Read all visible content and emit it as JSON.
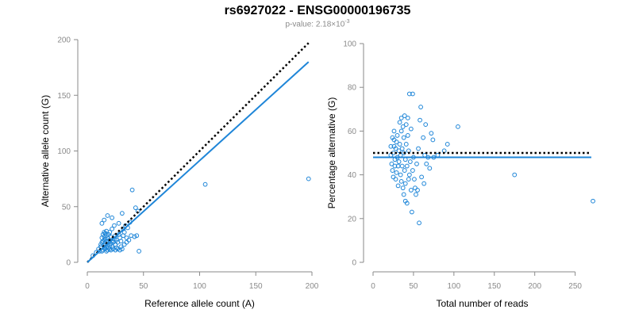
{
  "header": {
    "title": "rs6927022 - ENSG00000196735",
    "subtitle_prefix": "p-value: 2.18×10",
    "subtitle_exponent": "-3"
  },
  "colors": {
    "point": "#1f86d8",
    "fit_line": "#1f86d8",
    "reference_line": "#000000",
    "axis": "#8a8a8a",
    "tick_label": "#8a8a8a"
  },
  "chart_data": [
    {
      "type": "scatter",
      "xlabel": "Reference allele count (A)",
      "ylabel": "Alternative allele count (G)",
      "xlim": [
        0,
        200
      ],
      "ylim": [
        0,
        200
      ],
      "x_ticks": [
        0,
        50,
        100,
        150,
        200
      ],
      "y_ticks": [
        0,
        50,
        100,
        150,
        200
      ],
      "grid": false,
      "series": [
        {
          "points": [
            [
              5,
              6
            ],
            [
              8,
              9
            ],
            [
              10,
              12
            ],
            [
              11,
              10
            ],
            [
              12,
              14
            ],
            [
              12,
              16
            ],
            [
              13,
              10
            ],
            [
              13,
              18
            ],
            [
              13,
              22
            ],
            [
              13,
              35
            ],
            [
              14,
              11
            ],
            [
              14,
              19
            ],
            [
              14,
              25
            ],
            [
              15,
              13
            ],
            [
              15,
              15
            ],
            [
              15,
              20
            ],
            [
              15,
              23
            ],
            [
              15,
              27
            ],
            [
              15,
              38
            ],
            [
              16,
              12
            ],
            [
              16,
              17
            ],
            [
              16,
              21
            ],
            [
              16,
              26
            ],
            [
              17,
              10
            ],
            [
              17,
              14
            ],
            [
              17,
              19
            ],
            [
              17,
              24
            ],
            [
              17,
              28
            ],
            [
              18,
              11
            ],
            [
              18,
              16
            ],
            [
              18,
              22
            ],
            [
              18,
              42
            ],
            [
              19,
              13
            ],
            [
              19,
              18
            ],
            [
              19,
              25
            ],
            [
              20,
              12
            ],
            [
              20,
              15
            ],
            [
              20,
              20
            ],
            [
              20,
              27
            ],
            [
              21,
              11
            ],
            [
              21,
              17
            ],
            [
              21,
              23
            ],
            [
              22,
              14
            ],
            [
              22,
              19
            ],
            [
              22,
              30
            ],
            [
              22,
              40
            ],
            [
              23,
              12
            ],
            [
              23,
              18
            ],
            [
              24,
              21
            ],
            [
              24,
              33
            ],
            [
              25,
              11
            ],
            [
              25,
              16
            ],
            [
              25,
              24
            ],
            [
              26,
              13
            ],
            [
              26,
              20
            ],
            [
              27,
              12
            ],
            [
              27,
              18
            ],
            [
              28,
              25
            ],
            [
              28,
              35
            ],
            [
              29,
              11
            ],
            [
              29,
              22
            ],
            [
              30,
              14
            ],
            [
              30,
              19
            ],
            [
              31,
              12
            ],
            [
              31,
              44
            ],
            [
              32,
              24
            ],
            [
              32,
              30
            ],
            [
              33,
              16
            ],
            [
              33,
              27
            ],
            [
              34,
              33
            ],
            [
              35,
              18
            ],
            [
              35,
              22
            ],
            [
              36,
              31
            ],
            [
              37,
              20
            ],
            [
              38,
              36
            ],
            [
              39,
              24
            ],
            [
              40,
              65
            ],
            [
              42,
              23
            ],
            [
              43,
              49
            ],
            [
              44,
              24
            ],
            [
              45,
              46
            ],
            [
              46,
              10
            ],
            [
              105,
              70
            ],
            [
              197,
              75
            ]
          ]
        }
      ],
      "reference_line": {
        "style": "dotted",
        "from": [
          0,
          0
        ],
        "to": [
          197,
          197
        ]
      },
      "fit_line": {
        "style": "solid",
        "from": [
          0,
          0
        ],
        "to": [
          197,
          180
        ]
      }
    },
    {
      "type": "scatter",
      "xlabel": "Total number of reads",
      "ylabel": "Percentage alternative (G)",
      "xlim": [
        0,
        270
      ],
      "ylim": [
        0,
        100
      ],
      "x_ticks": [
        0,
        50,
        100,
        150,
        200,
        250
      ],
      "y_ticks": [
        0,
        20,
        40,
        60,
        80,
        100
      ],
      "grid": false,
      "series": [
        {
          "points": [
            [
              22,
              49
            ],
            [
              22,
              53
            ],
            [
              23,
              45
            ],
            [
              24,
              57
            ],
            [
              24,
              42
            ],
            [
              25,
              39
            ],
            [
              25,
              50
            ],
            [
              26,
              53
            ],
            [
              26,
              56
            ],
            [
              26,
              60
            ],
            [
              27,
              44
            ],
            [
              27,
              47
            ],
            [
              28,
              52
            ],
            [
              28,
              38
            ],
            [
              29,
              55
            ],
            [
              29,
              41
            ],
            [
              30,
              48
            ],
            [
              30,
              58
            ],
            [
              31,
              44
            ],
            [
              31,
              35
            ],
            [
              32,
              51
            ],
            [
              32,
              46
            ],
            [
              33,
              54
            ],
            [
              33,
              64
            ],
            [
              34,
              40
            ],
            [
              34,
              49
            ],
            [
              35,
              37
            ],
            [
              35,
              60
            ],
            [
              35,
              66
            ],
            [
              36,
              44
            ],
            [
              36,
              52
            ],
            [
              37,
              34
            ],
            [
              37,
              62
            ],
            [
              38,
              31
            ],
            [
              38,
              50
            ],
            [
              38,
              57
            ],
            [
              39,
              42
            ],
            [
              39,
              67
            ],
            [
              40,
              47
            ],
            [
              40,
              28
            ],
            [
              40,
              36
            ],
            [
              41,
              54
            ],
            [
              41,
              63
            ],
            [
              42,
              44
            ],
            [
              42,
              27
            ],
            [
              43,
              58
            ],
            [
              43,
              66
            ],
            [
              44,
              38
            ],
            [
              44,
              51
            ],
            [
              45,
              40
            ],
            [
              45,
              77
            ],
            [
              46,
              46
            ],
            [
              47,
              61
            ],
            [
              47,
              33
            ],
            [
              48,
              23
            ],
            [
              49,
              42
            ],
            [
              49,
              77
            ],
            [
              50,
              48
            ],
            [
              51,
              38
            ],
            [
              52,
              34
            ],
            [
              53,
              31
            ],
            [
              54,
              45
            ],
            [
              55,
              33
            ],
            [
              56,
              52
            ],
            [
              57,
              18
            ],
            [
              58,
              65
            ],
            [
              59,
              71
            ],
            [
              60,
              39
            ],
            [
              62,
              57
            ],
            [
              63,
              36
            ],
            [
              64,
              49
            ],
            [
              65,
              63
            ],
            [
              66,
              45
            ],
            [
              68,
              48
            ],
            [
              70,
              43
            ],
            [
              72,
              59
            ],
            [
              74,
              56
            ],
            [
              75,
              48
            ],
            [
              80,
              49
            ],
            [
              88,
              51
            ],
            [
              92,
              54
            ],
            [
              105,
              62
            ],
            [
              175,
              40
            ],
            [
              272,
              28
            ]
          ]
        }
      ],
      "reference_line": {
        "style": "dotted",
        "value": 50
      },
      "fit_line": {
        "style": "solid",
        "value": 48
      }
    }
  ]
}
